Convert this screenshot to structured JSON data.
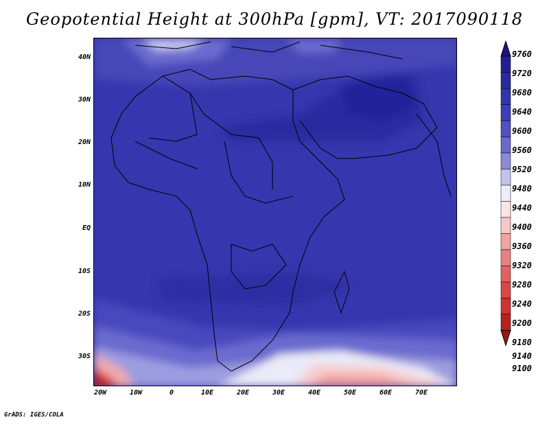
{
  "title": "Geopotential Height at 300hPa [gpm], VT: 2017090118",
  "footer": "GrADS: IGES/COLA",
  "map": {
    "lat_labels": [
      "40N",
      "30N",
      "20N",
      "10N",
      "EQ",
      "10S",
      "20S",
      "30S"
    ],
    "lon_labels": [
      "20W",
      "10W",
      "0",
      "10E",
      "20E",
      "30E",
      "40E",
      "50E",
      "60E",
      "70E"
    ],
    "lat_range": [
      -36,
      45
    ],
    "lon_range": [
      -22,
      80
    ]
  },
  "colorbar": {
    "levels": [
      "9760",
      "9720",
      "9680",
      "9640",
      "9600",
      "9560",
      "9520",
      "9480",
      "9440",
      "9400",
      "9360",
      "9320",
      "9280",
      "9240",
      "9200",
      "9180",
      "9140",
      "9100"
    ],
    "colors": [
      "#1c1480",
      "#22208e",
      "#2a2a9c",
      "#3434ac",
      "#3e3eb8",
      "#5050c2",
      "#6868cf",
      "#8a8ad9",
      "#c2c2ec",
      "#eeeefa",
      "#fbe4e4",
      "#f7c8c8",
      "#f0a4a4",
      "#e88282",
      "#e06262",
      "#d94848",
      "#cf3232",
      "#b82020",
      "#9c1414"
    ]
  }
}
